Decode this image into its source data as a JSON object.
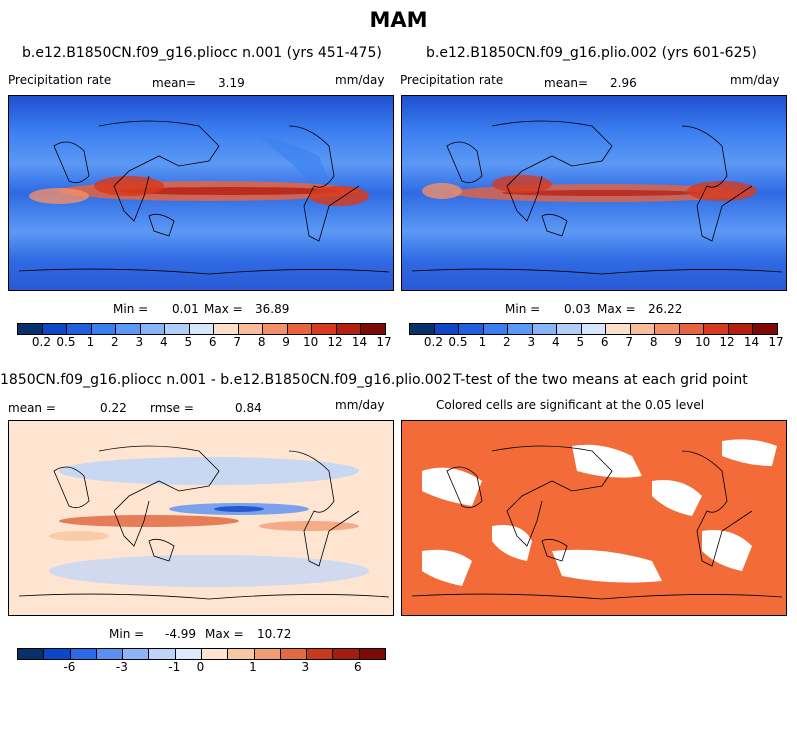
{
  "figure": {
    "title": "MAM"
  },
  "panels": {
    "top_left": {
      "case": "b.e12.B1850CN.f09_g16.pliocc n.001 (yrs 451-475)",
      "variable": "Precipitation rate",
      "mean_label": "mean=",
      "mean": "3.19",
      "units": "mm/day",
      "min_label": "Min =",
      "min": "0.01",
      "max_label": "Max =",
      "max": "36.89"
    },
    "top_right": {
      "case": "b.e12.B1850CN.f09_g16.plio.002 (yrs 601-625)",
      "variable": "Precipitation rate",
      "mean_label": "mean=",
      "mean": "2.96",
      "units": "mm/day",
      "min_label": "Min =",
      "min": "0.03",
      "max_label": "Max =",
      "max": "26.22"
    },
    "bottom_left": {
      "case": "1850CN.f09_g16.pliocc n.001 - b.e12.B1850CN.f09_g16.plio.002",
      "mean_label": "mean =",
      "mean": "0.22",
      "rmse_label": "rmse =",
      "rmse": "0.84",
      "units": "mm/day",
      "min_label": "Min =",
      "min": "-4.99",
      "max_label": "Max =",
      "max": "10.72"
    },
    "bottom_right": {
      "title": "T-test of the two means at each grid point",
      "subtitle": "Colored cells are significant at the 0.05 level"
    }
  },
  "colorbars": {
    "precip": {
      "colors": [
        "#08306b",
        "#0d47c8",
        "#1f5fe0",
        "#3b7ef0",
        "#5c99f5",
        "#86b5f8",
        "#b0cefa",
        "#d6e6fc",
        "#fde0cc",
        "#f9bd9c",
        "#f3906a",
        "#e8643e",
        "#d63b1f",
        "#b51f10",
        "#7d0a05"
      ],
      "labels": [
        "0.2",
        "0.5",
        "1",
        "2",
        "3",
        "4",
        "5",
        "6",
        "7",
        "8",
        "9",
        "10",
        "12",
        "14",
        "17"
      ]
    },
    "diff": {
      "colors": [
        "#08306b",
        "#0d47c8",
        "#2b6ae8",
        "#5990f2",
        "#8db4f7",
        "#bcd4fa",
        "#dde9fc",
        "#fde5d2",
        "#f9c6a4",
        "#f19c73",
        "#e26a43",
        "#c93a1d",
        "#a41c0e",
        "#7d0a05"
      ],
      "labels": [
        "-6",
        "-3",
        "-1",
        "0",
        "1",
        "3",
        "6"
      ]
    }
  },
  "colors": {
    "significant": "#f26b38",
    "diff_background": "#fde5d2"
  }
}
